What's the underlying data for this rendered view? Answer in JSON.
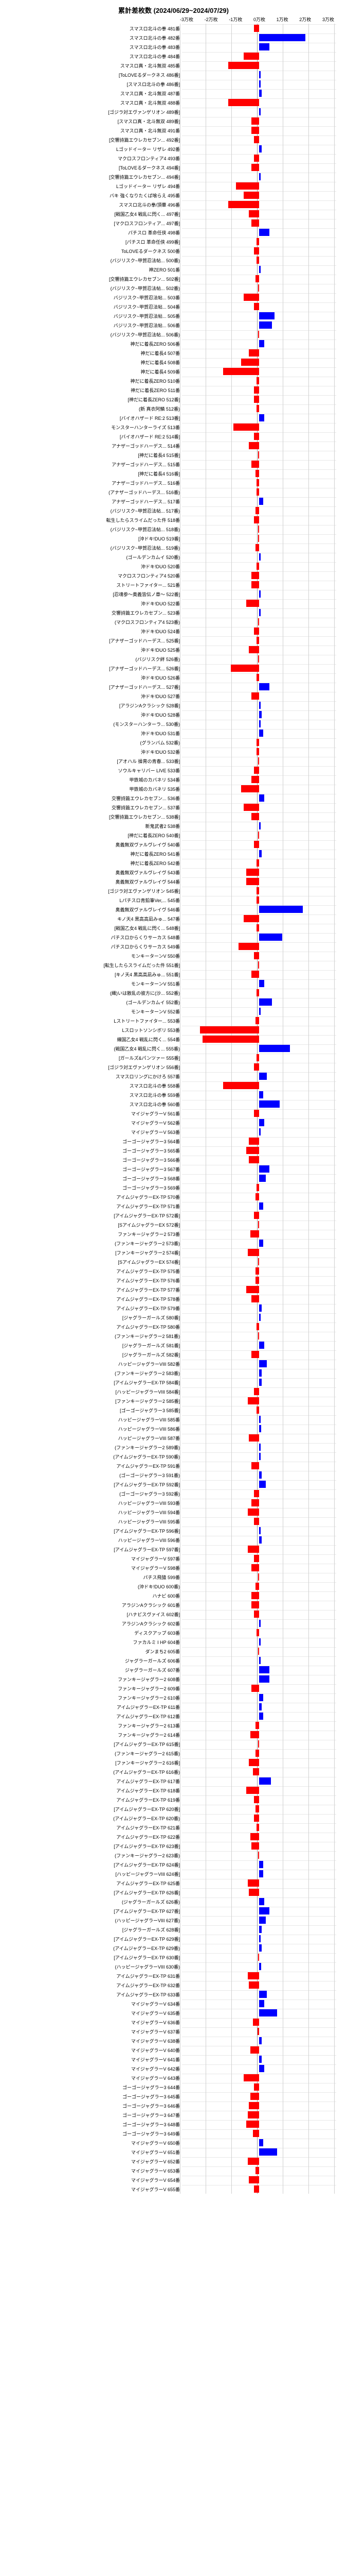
{
  "chart": {
    "title": "累計差枚数 (2024/06/29~2024/07/29)",
    "xlim": [
      -30000,
      30000
    ],
    "xtick_step": 10000,
    "xtick_labels": [
      "-3万枚",
      "-2万枚",
      "-1万枚",
      "0万枚",
      "1万枚",
      "2万枚",
      "3万枚"
    ],
    "bar_color_pos": "#0000ff",
    "bar_color_neg": "#ff0000",
    "background": "#ffffff",
    "grid_color": "#d0d0d0",
    "label_fontsize": 9,
    "title_fontsize": 13,
    "rows": [
      {
        "label": "スマスロ北斗の拳 481番",
        "value": -2000
      },
      {
        "label": "スマスロ北斗の拳 482番",
        "value": 18000
      },
      {
        "label": "スマスロ北斗の拳 483番",
        "value": 4000
      },
      {
        "label": "スマスロ北斗の拳 484番",
        "value": -6000
      },
      {
        "label": "スマスロ真・北斗無双 485番",
        "value": -12000
      },
      {
        "label": "[ToLOVEるダークネス 486番]",
        "value": 500
      },
      {
        "label": "[スマスロ北斗の拳 486番]",
        "value": 500
      },
      {
        "label": "スマスロ真・北斗無双 487番",
        "value": 1000
      },
      {
        "label": "スマスロ真・北斗無双 488番",
        "value": -12000
      },
      {
        "label": "[ゴジラ対エヴァンゲリオン 489番]",
        "value": 500
      },
      {
        "label": "[スマスロ真・北斗無双 489番]",
        "value": -3000
      },
      {
        "label": "スマスロ真・北斗無双 491番",
        "value": -3000
      },
      {
        "label": "[交響詩篇エウレカセブン... 492番]",
        "value": -2000
      },
      {
        "label": "Lゴッドイーター リザレ 492番",
        "value": 1000
      },
      {
        "label": "マクロスフロンティア4 493番",
        "value": -2000
      },
      {
        "label": "[ToLOVEるダークネス 494番]",
        "value": -3000
      },
      {
        "label": "[交響詩篇エウレカセブン... 494番]",
        "value": 500
      },
      {
        "label": "Lゴッドイーター リザレ 494番",
        "value": -9000
      },
      {
        "label": "バキ 強くなりたくば喰らえ 495番",
        "value": -6000
      },
      {
        "label": "スマスロ北斗の拳/頂華 496番",
        "value": -12000
      },
      {
        "label": "[戦国乙女4 戦乱に閃く... 497番]",
        "value": -4000
      },
      {
        "label": "[マクロスフロンティア... 497番]",
        "value": -3000
      },
      {
        "label": "パチスロ 革命任侠 498番",
        "value": 4000
      },
      {
        "label": "[パチスロ 革命任侠 499番]",
        "value": -1000
      },
      {
        "label": "ToLOVEるダークネス 500番",
        "value": -2000
      },
      {
        "label": "(バジリスク~甲賀忍法帖... 500番)",
        "value": -1000
      },
      {
        "label": "神ZERO 501番",
        "value": 500
      },
      {
        "label": "[交響詩篇エウレカセブン... 502番]",
        "value": -1500
      },
      {
        "label": "(バジリスク~甲賀忍法帖... 502番)",
        "value": -500
      },
      {
        "label": "バジリスク~甲賀忍法帖... 503番",
        "value": -6000
      },
      {
        "label": "バジリスク~甲賀忍法帖... 504番",
        "value": -2000
      },
      {
        "label": "バジリスク~甲賀忍法帖... 505番",
        "value": 6000
      },
      {
        "label": "バジリスク~甲賀忍法帖... 506番",
        "value": 5000
      },
      {
        "label": "(バジリスク~甲賀忍法帖... 506番)",
        "value": -500
      },
      {
        "label": "神だに着長ZERO 506番",
        "value": 2000
      },
      {
        "label": "神だに着長4 507番",
        "value": -4000
      },
      {
        "label": "神だに着長4 508番",
        "value": -7000
      },
      {
        "label": "神だに着長4 509番",
        "value": -14000
      },
      {
        "label": "神だに着長ZERO 510番",
        "value": -1000
      },
      {
        "label": "神だに着長ZERO 511番",
        "value": -2000
      },
      {
        "label": "[神だに着長ZERO 512番]",
        "value": -2000
      },
      {
        "label": "(新 真衣阿鱗 512番)",
        "value": -1000
      },
      {
        "label": "[バイオハザード RE:2 513番]",
        "value": 2000
      },
      {
        "label": "モンスターハンターライズ 513番",
        "value": -10000
      },
      {
        "label": "[バイオハザード RE:2 514番]",
        "value": -2000
      },
      {
        "label": "アナザーゴッドハーデス... 514番",
        "value": -4000
      },
      {
        "label": "[神だに着長4 515番]",
        "value": -500
      },
      {
        "label": "アナザーゴッドハーデス... 515番",
        "value": -3000
      },
      {
        "label": "[神だに着長4 516番]",
        "value": -1500
      },
      {
        "label": "アナザーゴッドハーデス... 516番",
        "value": -1000
      },
      {
        "label": "(アナザーゴッドハーデス... 516番)",
        "value": -1000
      },
      {
        "label": "アナザーゴッドハーデス... 517番",
        "value": 1500
      },
      {
        "label": "(バジリスク~甲賀忍法帖... 517番)",
        "value": -1500
      },
      {
        "label": "転生したらスライムだった件 518番",
        "value": -2000
      },
      {
        "label": "(バジリスク~甲賀忍法帖... 518番)",
        "value": -500
      },
      {
        "label": "[沖ドキ!DUO 519番]",
        "value": -500
      },
      {
        "label": "(バジリスク~甲賀忍法帖... 519番)",
        "value": -1500
      },
      {
        "label": "(ゴールデンカムイ 520番)",
        "value": 500
      },
      {
        "label": "沖ドキ!DUO 520番",
        "value": -1000
      },
      {
        "label": "マクロスフロンティア4 520番",
        "value": -3000
      },
      {
        "label": "ストリートファイター... 521番",
        "value": -3000
      },
      {
        "label": "[忍魂参〜奥義皆伝ノ章〜 522番]",
        "value": 500
      },
      {
        "label": "沖ドキ!DUO 522番",
        "value": -5000
      },
      {
        "label": "交響詩篇エウレカセブン... 523番",
        "value": 500
      },
      {
        "label": "(マクロスフロンティア4 523番)",
        "value": -500
      },
      {
        "label": "沖ドキ!DUO 524番",
        "value": -2000
      },
      {
        "label": "[アナザーゴッドハーデス... 525番]",
        "value": -1000
      },
      {
        "label": "沖ドキ!DUO 525番",
        "value": -4000
      },
      {
        "label": "(バジリスク絆 526番)",
        "value": -500
      },
      {
        "label": "[アナザーゴッドハーデス... 526番]",
        "value": -11000
      },
      {
        "label": "沖ドキ!DUO 526番",
        "value": -1000
      },
      {
        "label": "[アナザーゴッドハーデス... 527番]",
        "value": 4000
      },
      {
        "label": "沖ドキ!DUO 527番",
        "value": -3000
      },
      {
        "label": "[アラジンAクラシック 528番]",
        "value": 600
      },
      {
        "label": "沖ドキ!DUO 528番",
        "value": 1000
      },
      {
        "label": "(モンスターハンターラ... 530番)",
        "value": 500
      },
      {
        "label": "沖ドキ!DUO 531番",
        "value": 1500
      },
      {
        "label": "(グランバム 532番)",
        "value": -1000
      },
      {
        "label": "沖ドキ!DUO 532番",
        "value": -1000
      },
      {
        "label": "[アオハル 操育の青春... 533番]",
        "value": -500
      },
      {
        "label": "ソウルキャリバー LIVE 533番",
        "value": -2000
      },
      {
        "label": "甲鉄城のカバネリ 534番",
        "value": -3000
      },
      {
        "label": "甲鉄城のカバネリ 535番",
        "value": -7000
      },
      {
        "label": "交響詩篇エウレカセブン... 536番",
        "value": 2000
      },
      {
        "label": "交響詩篇エウレカセブン... 537番",
        "value": -6000
      },
      {
        "label": "[交響詩篇エウレカセブン... 538番]",
        "value": -3000
      },
      {
        "label": "新鬼武者2 538番",
        "value": 500
      },
      {
        "label": "[神だに着長ZERO 540番]",
        "value": -500
      },
      {
        "label": "奥義無双ヴァルヴレイヴ 540番",
        "value": -2000
      },
      {
        "label": "神だに着長ZERO 541番",
        "value": 1000
      },
      {
        "label": "神だに着長ZERO 542番",
        "value": -1000
      },
      {
        "label": "奥義無双ヴァルヴレイヴ 543番",
        "value": -5000
      },
      {
        "label": "奥義無双ヴァルヴレイヴ 544番",
        "value": -5000
      },
      {
        "label": "[ゴジラ対エヴァンゲリオン 545番]",
        "value": -1000
      },
      {
        "label": "Lパチスロ青鉛筆Ver,... 545番",
        "value": -1000
      },
      {
        "label": "奥義無双ヴァルヴレイヴ 546番",
        "value": 17000
      },
      {
        "label": "キノ天4 黒高高凪みゅ... 547番",
        "value": -6000
      },
      {
        "label": "[戦国乙女4 戦乱に閃く... 548番]",
        "value": -1000
      },
      {
        "label": "パチスロからくりサーカス 548番",
        "value": 9000
      },
      {
        "label": "パチスロからくりサーカス 549番",
        "value": -8000
      },
      {
        "label": "モンキーターンV 550番",
        "value": -2000
      },
      {
        "label": "[転生したらスライムだった件 551番]",
        "value": -500
      },
      {
        "label": "[キノ天4 黒高高凪みゅ... 551番]",
        "value": -3000
      },
      {
        "label": "モンキーターンV 551番",
        "value": 2000
      },
      {
        "label": "(織)いは散乱の彼方に(沙... 552番)",
        "value": -1000
      },
      {
        "label": "(ゴールデンカムイ 552番)",
        "value": 5000
      },
      {
        "label": "モンキーターンV 552番",
        "value": 500
      },
      {
        "label": "Lストリートファイター... 553番",
        "value": -1500
      },
      {
        "label": "Lスロットソンシボリ 553番",
        "value": -23000
      },
      {
        "label": "織国乙女4 戦乱に閃く... 554番",
        "value": -22000
      },
      {
        "label": "(戦国乙女4 戦乱に閃く... 555番)",
        "value": 12000
      },
      {
        "label": "[ガールズ&パンツァー 555番]",
        "value": -1000
      },
      {
        "label": "[ゴジラ対エヴァンゲリオン 556番]",
        "value": -2000
      },
      {
        "label": "スマスロリングにかけろ 557番",
        "value": 3000
      },
      {
        "label": "スマスロ北斗の拳 558番",
        "value": -14000
      },
      {
        "label": "スマスロ北斗の拳 559番",
        "value": 1500
      },
      {
        "label": "スマスロ北斗の拳 560番",
        "value": 8000
      },
      {
        "label": "マイジャグラーV 561番",
        "value": -2000
      },
      {
        "label": "マイジャグラーV 562番",
        "value": 2000
      },
      {
        "label": "マイジャグラーV 563番",
        "value": 500
      },
      {
        "label": "ゴーゴージャグラー3 564番",
        "value": -4000
      },
      {
        "label": "ゴーゴージャグラー3 565番",
        "value": -5000
      },
      {
        "label": "ゴーゴージャグラー3 566番",
        "value": -4000
      },
      {
        "label": "ゴーゴージャグラー3 567番",
        "value": 4000
      },
      {
        "label": "ゴーゴージャグラー3 568番",
        "value": 2500
      },
      {
        "label": "ゴーゴージャグラー3 569番",
        "value": -1000
      },
      {
        "label": "アイムジャグラーEX-TP 570番",
        "value": -1500
      },
      {
        "label": "アイムジャグラーEX-TP 571番",
        "value": 1500
      },
      {
        "label": "[アイムジャグラーEX-TP 572番]",
        "value": -2000
      },
      {
        "label": "[SアイムジャグラーEX 572番]",
        "value": -500
      },
      {
        "label": "ファンキージャグラー2 573番",
        "value": -3500
      },
      {
        "label": "(ファンキージャグラー2 573番)",
        "value": 1500
      },
      {
        "label": "[ファンキージャグラー2 574番]",
        "value": -4500
      },
      {
        "label": "[SアイムジャグラーEX 574番]",
        "value": -500
      },
      {
        "label": "アイムジャグラーEX-TP 575番",
        "value": -1500
      },
      {
        "label": "アイムジャグラーEX-TP 576番",
        "value": -1500
      },
      {
        "label": "アイムジャグラーEX-TP 577番",
        "value": -5000
      },
      {
        "label": "アイムジャグラーEX-TP 578番",
        "value": -3000
      },
      {
        "label": "アイムジャグラーEX-TP 579番",
        "value": 1000
      },
      {
        "label": "[ジャグラーガールズ 580番]",
        "value": 500
      },
      {
        "label": "アイムジャグラーEX-TP 580番",
        "value": -1000
      },
      {
        "label": "(ファンキージャグラー2 581番)",
        "value": -500
      },
      {
        "label": "[ジャグラーガールズ 581番]",
        "value": 2000
      },
      {
        "label": "[ジャグラーガールズ 582番]",
        "value": -3000
      },
      {
        "label": "ハッピージャグラーVIII 582番",
        "value": 3000
      },
      {
        "label": "(ファンキージャグラー2 583番)",
        "value": 1000
      },
      {
        "label": "[アイムジャグラーEX-TP 584番]",
        "value": 1000
      },
      {
        "label": "[ハッピージャグラーVIII 584番]",
        "value": -2000
      },
      {
        "label": "[ファンキージャグラー2 585番]",
        "value": -4500
      },
      {
        "label": "[ゴーゴージャグラー3 585番]",
        "value": -1000
      },
      {
        "label": "ハッピージャグラーVIII 585番",
        "value": 500
      },
      {
        "label": "ハッピージャグラーVIII 586番",
        "value": 800
      },
      {
        "label": "ハッピージャグラーVIII 587番",
        "value": -4000
      },
      {
        "label": "(ファンキージャグラー2 589番)",
        "value": 500
      },
      {
        "label": "(アイムジャグラーEX-TP 590番)",
        "value": 500
      },
      {
        "label": "アイムジャグラーEX-TP 591番",
        "value": -3000
      },
      {
        "label": "(ゴーゴージャグラー3 591番)",
        "value": 1000
      },
      {
        "label": "[アイムジャグラーEX-TP 592番]",
        "value": 2500
      },
      {
        "label": "(ゴーゴージャグラー3 592番)",
        "value": -2000
      },
      {
        "label": "ハッピージャグラーVIII 593番",
        "value": -3000
      },
      {
        "label": "ハッピージャグラーVIII 594番",
        "value": -4500
      },
      {
        "label": "ハッピージャグラーVIII 595番",
        "value": -2000
      },
      {
        "label": "[アイムジャグラーEX-TP 596番]",
        "value": 500
      },
      {
        "label": "ハッピージャグラーVIII 596番",
        "value": 1000
      },
      {
        "label": "[アイムジャグラーEX-TP 597番]",
        "value": -4500
      },
      {
        "label": "マイジャグラーV 597番",
        "value": -2000
      },
      {
        "label": "マイジャグラーV 598番",
        "value": -3000
      },
      {
        "label": "パチス飛猿 599番",
        "value": -500
      },
      {
        "label": "(沖ドキ!DUO 600番)",
        "value": -1500
      },
      {
        "label": "ハナビ 600番",
        "value": -3000
      },
      {
        "label": "アラジンAクラシック 601番",
        "value": -3000
      },
      {
        "label": "[ハナビスヴァイス 602番]",
        "value": -2000
      },
      {
        "label": "アラジンAクラシック 602番",
        "value": 500
      },
      {
        "label": "ディスクアップ 603番",
        "value": -1000
      },
      {
        "label": "ファカルミ Ⅰ HP 604番",
        "value": 500
      },
      {
        "label": "ダンまち2 605番",
        "value": -500
      },
      {
        "label": "ジャグラーガールズ 606番",
        "value": 500
      },
      {
        "label": "ジャグラーガールズ 607番",
        "value": 4000
      },
      {
        "label": "ファンキージャグラー2 608番",
        "value": 4000
      },
      {
        "label": "ファンキージャグラー2 609番",
        "value": -3000
      },
      {
        "label": "ファンキージャグラー2 610番",
        "value": 1500
      },
      {
        "label": "アイムジャグラーEX-TP 611番",
        "value": 1000
      },
      {
        "label": "アイムジャグラーEX-TP 612番",
        "value": 1500
      },
      {
        "label": "ファンキージャグラー2 613番",
        "value": -1500
      },
      {
        "label": "ファンキージャグラー2 614番",
        "value": -3500
      },
      {
        "label": "[アイムジャグラーEX-TP 615番]",
        "value": -500
      },
      {
        "label": "(ファンキージャグラー2 615番)",
        "value": -1500
      },
      {
        "label": "[ファンキージャグラー2 616番]",
        "value": -4000
      },
      {
        "label": "(アイムジャグラーEX-TP 616番)",
        "value": -2500
      },
      {
        "label": "アイムジャグラーEX-TP 617番",
        "value": 4500
      },
      {
        "label": "アイムジャグラーEX-TP 618番",
        "value": -5000
      },
      {
        "label": "アイムジャグラーEX-TP 619番",
        "value": -2000
      },
      {
        "label": "[アイムジャグラーEX-TP 620番]",
        "value": -1500
      },
      {
        "label": "(アイムジャグラーEX-TP 620番)",
        "value": -2000
      },
      {
        "label": "アイムジャグラーEX-TP 621番",
        "value": -1000
      },
      {
        "label": "アイムジャグラーEX-TP 622番",
        "value": -3500
      },
      {
        "label": "[アイムジャグラーEX-TP 623番]",
        "value": -3000
      },
      {
        "label": "(ファンキージャグラー2 623番)",
        "value": -500
      },
      {
        "label": "[アイムジャグラーEX-TP 624番]",
        "value": 1500
      },
      {
        "label": "[ハッピージャグラーVIII 624番]",
        "value": 1500
      },
      {
        "label": "アイムジャグラーEX-TP 625番",
        "value": -4500
      },
      {
        "label": "[アイムジャグラーEX-TP 626番]",
        "value": -4000
      },
      {
        "label": "(ジャグラーガールズ 626番)",
        "value": 2000
      },
      {
        "label": "[アイムジャグラーEX-TP 627番]",
        "value": 4000
      },
      {
        "label": "(ハッピージャグラーVIII 627番)",
        "value": 2500
      },
      {
        "label": "[ジャグラーガールズ 628番]",
        "value": 1000
      },
      {
        "label": "[アイムジャグラーEX-TP 629番]",
        "value": 500
      },
      {
        "label": "(アイムジャグラーEX-TP 629番)",
        "value": 1000
      },
      {
        "label": "[アイムジャグラーEX-TP 630番]",
        "value": -500
      },
      {
        "label": "(ハッピージャグラーVIII 630番)",
        "value": 800
      },
      {
        "label": "アイムジャグラーEX-TP 631番",
        "value": -4500
      },
      {
        "label": "アイムジャグラーEX-TP 632番",
        "value": -4000
      },
      {
        "label": "アイムジャグラーEX-TP 633番",
        "value": 3000
      },
      {
        "label": "マイジャグラーV 634番",
        "value": 2000
      },
      {
        "label": "マイジャグラーV 635番",
        "value": 7000
      },
      {
        "label": "マイジャグラーV 636番",
        "value": -2500
      },
      {
        "label": "マイジャグラーV 637番",
        "value": -600
      },
      {
        "label": "マイジャグラーV 638番",
        "value": 1000
      },
      {
        "label": "マイジャグラーV 640番",
        "value": -3500
      },
      {
        "label": "マイジャグラーV 641番",
        "value": 1000
      },
      {
        "label": "マイジャグラーV 642番",
        "value": 2000
      },
      {
        "label": "マイジャグラーV 643番",
        "value": -6000
      },
      {
        "label": "ゴーゴージャグラー3 644番",
        "value": -2000
      },
      {
        "label": "ゴーゴージャグラー3 645番",
        "value": -3500
      },
      {
        "label": "ゴーゴージャグラー3 646番",
        "value": -4000
      },
      {
        "label": "ゴーゴージャグラー3 647番",
        "value": -4500
      },
      {
        "label": "ゴーゴージャグラー3 648番",
        "value": -5000
      },
      {
        "label": "ゴーゴージャグラー3 649番",
        "value": -2500
      },
      {
        "label": "マイジャグラーV 650番",
        "value": 1500
      },
      {
        "label": "マイジャグラーV 651番",
        "value": 7000
      },
      {
        "label": "マイジャグラーV 652番",
        "value": -4500
      },
      {
        "label": "マイジャグラーV 653番",
        "value": -1500
      },
      {
        "label": "マイジャグラーV 654番",
        "value": -4000
      },
      {
        "label": "マイジャグラーV 655番",
        "value": -2000
      }
    ]
  }
}
